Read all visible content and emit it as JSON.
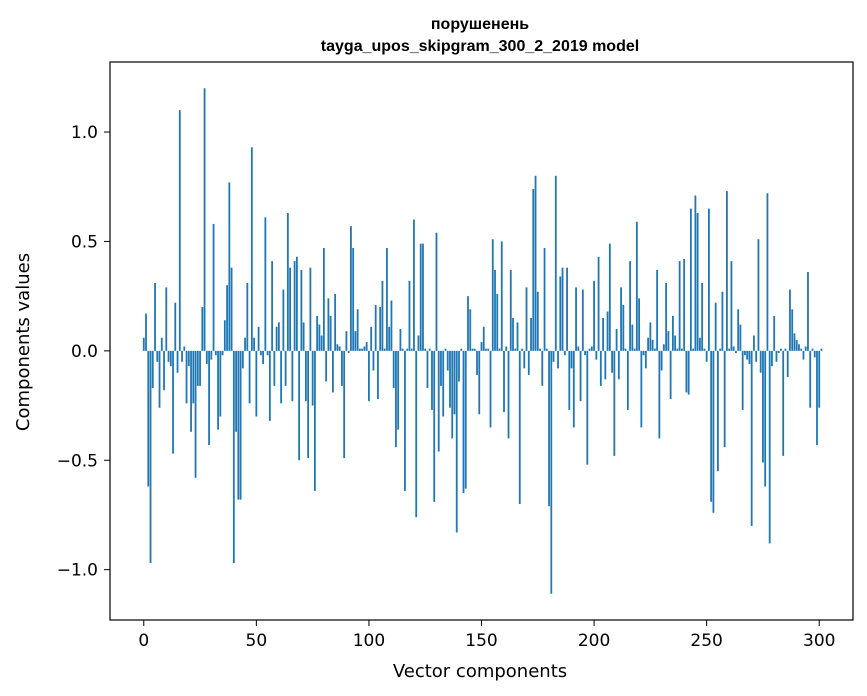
{
  "chart_data": {
    "type": "bar",
    "title": "порушенень",
    "subtitle": "tayga_upos_skipgram_300_2_2019 model",
    "xlabel": "Vector components",
    "ylabel": "Components values",
    "xlim": [
      -15,
      315
    ],
    "ylim": [
      -1.23,
      1.32
    ],
    "xticks": [
      0,
      50,
      100,
      150,
      200,
      250,
      300
    ],
    "xtick_labels": [
      "0",
      "50",
      "100",
      "150",
      "200",
      "250",
      "300"
    ],
    "yticks": [
      -1.0,
      -0.5,
      0.0,
      0.5,
      1.0
    ],
    "ytick_labels": [
      "−1.0",
      "−0.5",
      "0.0",
      "0.5",
      "1.0"
    ],
    "grid": false,
    "legend": "none",
    "bar_color": "#1f77b4",
    "values": [
      0.06,
      0.17,
      -0.62,
      -0.97,
      -0.17,
      0.31,
      -0.05,
      -0.26,
      0.06,
      -0.18,
      0.29,
      -0.05,
      -0.07,
      -0.47,
      0.22,
      -0.1,
      1.1,
      -0.05,
      0.02,
      -0.24,
      -0.07,
      -0.37,
      -0.24,
      -0.58,
      -0.16,
      -0.16,
      0.2,
      1.2,
      -0.06,
      -0.43,
      -0.04,
      0.58,
      -0.02,
      -0.36,
      -0.3,
      -0.02,
      0.14,
      0.3,
      0.77,
      0.38,
      -0.97,
      -0.37,
      -0.68,
      -0.68,
      -0.08,
      0.06,
      0.31,
      -0.24,
      0.93,
      0.06,
      -0.3,
      0.11,
      -0.02,
      -0.06,
      0.61,
      -0.02,
      -0.32,
      0.41,
      -0.16,
      0.11,
      0.13,
      -0.24,
      0.28,
      -0.16,
      0.63,
      0.38,
      -0.23,
      0.41,
      0.43,
      -0.5,
      0.37,
      0.13,
      -0.23,
      -0.49,
      0.38,
      -0.25,
      -0.64,
      0.16,
      0.12,
      0.07,
      0.47,
      -0.14,
      0.24,
      0.16,
      -0.19,
      0.26,
      0.03,
      0.02,
      -0.16,
      -0.49,
      0.09,
      -0.01,
      0.57,
      0.47,
      0.09,
      0.19,
      0.01,
      0.01,
      0.02,
      0.04,
      -0.23,
      0.11,
      -0.09,
      0.21,
      -0.22,
      0.2,
      0.32,
      0.01,
      0.47,
      0.11,
      0.23,
      -0.17,
      -0.44,
      -0.36,
      0.1,
      0.01,
      -0.64,
      0.01,
      0.32,
      0.01,
      0.6,
      -0.76,
      0.07,
      0.49,
      0.49,
      0.01,
      -0.17,
      0.01,
      -0.27,
      -0.69,
      0.54,
      -0.46,
      -0.16,
      -0.3,
      0.01,
      -0.09,
      -0.26,
      -0.4,
      -0.29,
      -0.83,
      -0.14,
      0.01,
      -0.65,
      -0.63,
      0.25,
      0.19,
      0.01,
      0.01,
      -0.11,
      -0.29,
      0.04,
      0.11,
      0.01,
      0.01,
      -0.35,
      0.51,
      0.37,
      0.26,
      0.01,
      0.5,
      -0.28,
      0.02,
      -0.4,
      0.37,
      0.15,
      0.01,
      0.13,
      -0.7,
      0.01,
      -0.08,
      0.29,
      -0.11,
      0.15,
      0.74,
      0.8,
      0.27,
      0.01,
      -0.16,
      0.47,
      0.01,
      -0.71,
      -1.11,
      -0.05,
      0.8,
      -0.08,
      0.34,
      0.38,
      -0.02,
      0.38,
      -0.27,
      -0.08,
      -0.35,
      0.29,
      0.02,
      -0.23,
      0.28,
      -0.02,
      -0.52,
      0.01,
      0.02,
      0.32,
      -0.04,
      0.43,
      -0.16,
      0.15,
      -0.13,
      0.18,
      0.49,
      -0.1,
      -0.48,
      0.1,
      -0.13,
      0.29,
      0.21,
      0.01,
      -0.27,
      0.41,
      0.12,
      0.01,
      0.59,
      0.24,
      -0.35,
      -0.02,
      -0.08,
      0.06,
      0.13,
      0.05,
      0.01,
      0.37,
      -0.4,
      -0.09,
      0.03,
      0.31,
      0.09,
      -0.22,
      0.16,
      0.07,
      0.01,
      0.41,
      0.01,
      0.42,
      -0.19,
      -0.2,
      0.65,
      0.01,
      0.71,
      0.63,
      0.06,
      0.31,
      0.01,
      -0.05,
      0.65,
      -0.69,
      -0.74,
      0.22,
      -0.55,
      0.01,
      0.27,
      -0.44,
      0.73,
      0.01,
      0.41,
      0.02,
      -0.01,
      0.19,
      0.12,
      -0.27,
      -0.02,
      -0.04,
      -0.06,
      -0.8,
      0.07,
      -0.05,
      0.51,
      -0.1,
      -0.51,
      -0.62,
      0.72,
      -0.88,
      -0.07,
      0.16,
      -0.05,
      -0.01,
      0.01,
      -0.48,
      0.01,
      -0.12,
      0.28,
      0.19,
      0.08,
      0.05,
      0.03,
      0.01,
      -0.04,
      0.02,
      0.36,
      -0.26,
      0.01,
      -0.03,
      -0.43,
      -0.26,
      0.01
    ]
  }
}
